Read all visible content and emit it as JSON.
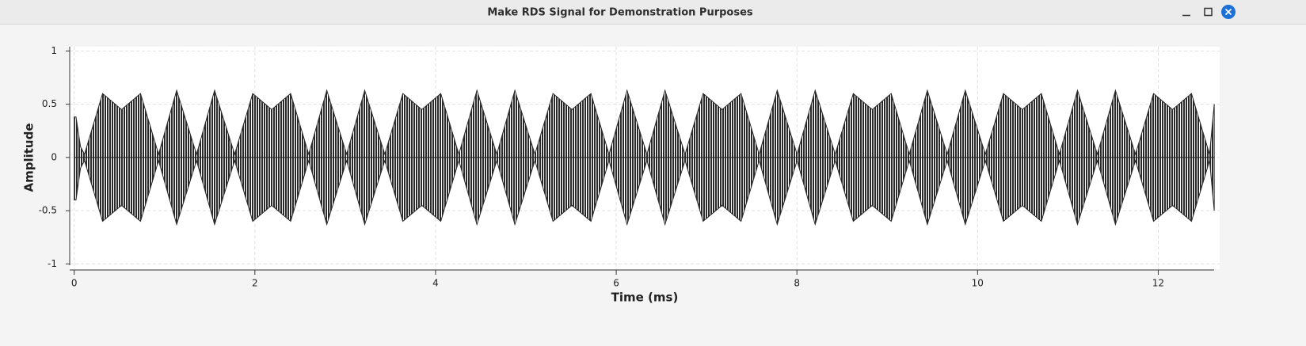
{
  "window": {
    "title": "Make RDS Signal for Demonstration Purposes"
  },
  "chart_data": {
    "type": "envelope",
    "ylabel": "Amplitude",
    "xlabel": "Time (ms)",
    "x": [
      0,
      0.02,
      0.07,
      0.114,
      0.314,
      0.524,
      0.734,
      0.934,
      1.134,
      1.354,
      1.554,
      1.776,
      1.976,
      2.186,
      2.396,
      2.596,
      2.796,
      3.016,
      3.216,
      3.438,
      3.638,
      3.848,
      4.058,
      4.258,
      4.458,
      4.678,
      4.878,
      5.1,
      5.3,
      5.51,
      5.72,
      5.92,
      6.12,
      6.34,
      6.54,
      6.762,
      6.962,
      7.172,
      7.382,
      7.582,
      7.782,
      8.002,
      8.202,
      8.424,
      8.624,
      8.834,
      9.044,
      9.244,
      9.444,
      9.664,
      9.864,
      10.086,
      10.286,
      10.496,
      10.706,
      10.906,
      11.106,
      11.326,
      11.526,
      11.748,
      11.948,
      12.158,
      12.368,
      12.568,
      12.62
    ],
    "series": [
      {
        "color": "#2a2a2a",
        "values": [
          0.38,
          0.38,
          0.1,
          0.03,
          0.6,
          0.45,
          0.6,
          0.03,
          0.63,
          0.03,
          0.63,
          0.03,
          0.6,
          0.45,
          0.6,
          0.03,
          0.63,
          0.03,
          0.63,
          0.03,
          0.6,
          0.45,
          0.6,
          0.03,
          0.63,
          0.03,
          0.63,
          0.03,
          0.6,
          0.45,
          0.6,
          0.03,
          0.63,
          0.03,
          0.63,
          0.03,
          0.6,
          0.45,
          0.6,
          0.03,
          0.63,
          0.03,
          0.63,
          0.03,
          0.6,
          0.45,
          0.6,
          0.03,
          0.63,
          0.03,
          0.63,
          0.03,
          0.6,
          0.45,
          0.6,
          0.03,
          0.63,
          0.03,
          0.63,
          0.03,
          0.6,
          0.45,
          0.6,
          0.03,
          0.5
        ]
      },
      {
        "color": "#2a2a2a",
        "values": [
          -0.4,
          -0.4,
          -0.1,
          -0.03,
          -0.6,
          -0.45,
          -0.6,
          -0.03,
          -0.63,
          -0.03,
          -0.63,
          -0.03,
          -0.6,
          -0.45,
          -0.6,
          -0.03,
          -0.63,
          -0.03,
          -0.63,
          -0.03,
          -0.6,
          -0.45,
          -0.6,
          -0.03,
          -0.63,
          -0.03,
          -0.63,
          -0.03,
          -0.6,
          -0.45,
          -0.6,
          -0.03,
          -0.63,
          -0.03,
          -0.63,
          -0.03,
          -0.6,
          -0.45,
          -0.6,
          -0.03,
          -0.63,
          -0.03,
          -0.63,
          -0.03,
          -0.6,
          -0.45,
          -0.6,
          -0.03,
          -0.63,
          -0.03,
          -0.63,
          -0.03,
          -0.6,
          -0.45,
          -0.6,
          -0.03,
          -0.63,
          -0.03,
          -0.63,
          -0.03,
          -0.6,
          -0.45,
          -0.6,
          -0.03,
          -0.5
        ]
      }
    ],
    "xlim": [
      -0.05,
      12.68
    ],
    "xticks": [
      0,
      2,
      4,
      6,
      8,
      10,
      12
    ],
    "ylim": [
      -1.05,
      1.04
    ],
    "yticks": [
      1,
      0.5,
      0,
      -0.5,
      -1
    ],
    "grid": true
  }
}
